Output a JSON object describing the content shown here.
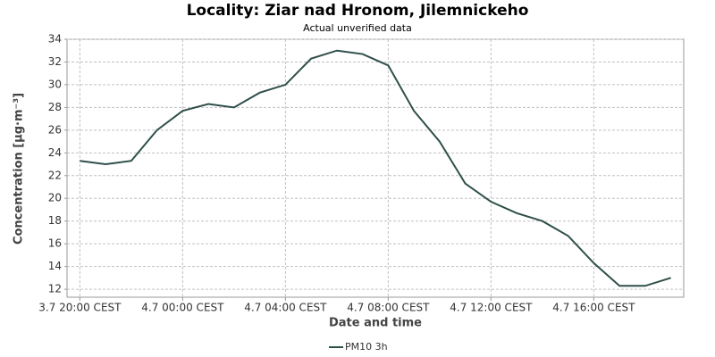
{
  "chart_data": {
    "type": "line",
    "title": "Locality: Ziar nad Hronom, Jilemnickeho",
    "subtitle": "Actual unverified data",
    "x_label": "Date and time",
    "y_label": "Concentration [µg·m⁻³]",
    "categories": [
      "3.7 20:00 CEST",
      null,
      null,
      null,
      "4.7 00:00 CEST",
      null,
      null,
      null,
      "4.7 04:00 CEST",
      null,
      null,
      null,
      "4.7 08:00 CEST",
      null,
      null,
      null,
      "4.7 12:00 CEST",
      null,
      null,
      null,
      "4.7 16:00 CEST",
      null,
      null,
      null
    ],
    "series": [
      {
        "name": "PM10 3h",
        "color": "#2f4f4a",
        "values": [
          23.3,
          23.0,
          23.3,
          26.0,
          27.7,
          28.3,
          28.0,
          29.3,
          30.0,
          32.3,
          33.0,
          32.7,
          31.7,
          27.7,
          25.0,
          21.3,
          19.7,
          18.7,
          18.0,
          16.7,
          14.3,
          12.3,
          12.3,
          13.0
        ]
      }
    ],
    "ylim": [
      11.3,
      34
    ],
    "yticks": [
      12,
      14,
      16,
      18,
      20,
      22,
      24,
      26,
      28,
      30,
      32,
      34
    ],
    "grid": true,
    "legend": "bottom"
  }
}
